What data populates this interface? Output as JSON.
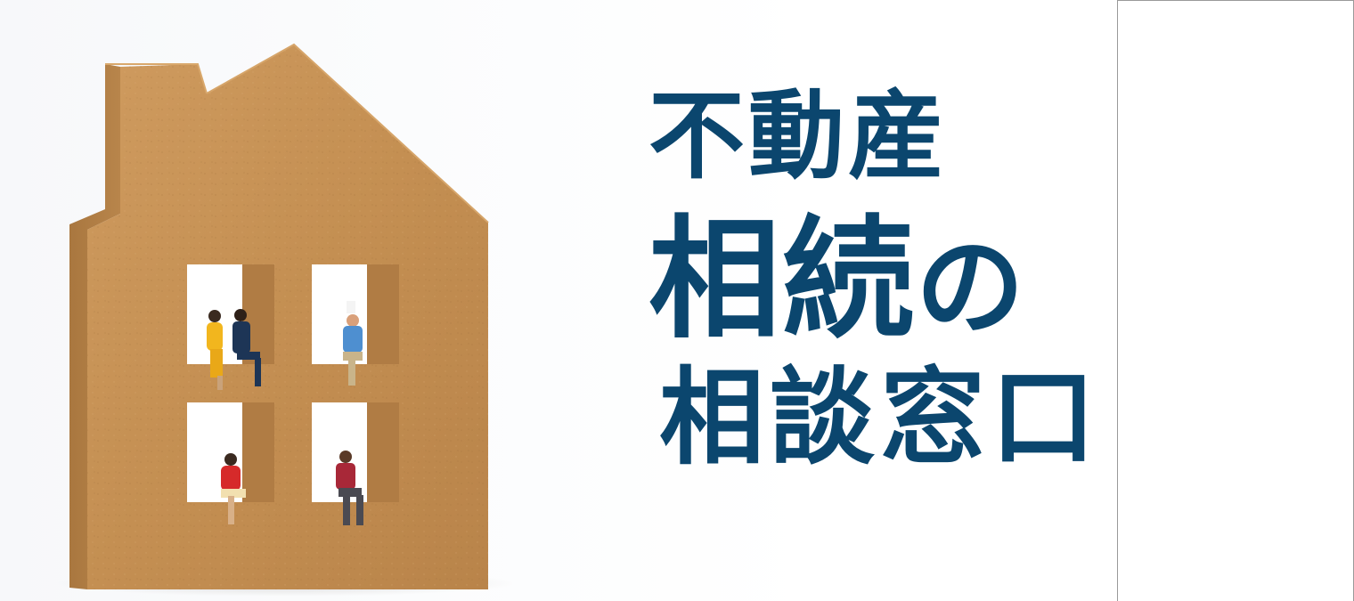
{
  "headline": {
    "line1": "不動産",
    "line2_main": "相続",
    "line2_particle": "の",
    "line3": "相談窓口"
  },
  "colors": {
    "text": "#0b466e",
    "wood": "#c8955a",
    "wood_dark": "#a8753d",
    "background": "#ffffff"
  },
  "image": {
    "subject": "wooden-house-with-miniature-figures"
  }
}
